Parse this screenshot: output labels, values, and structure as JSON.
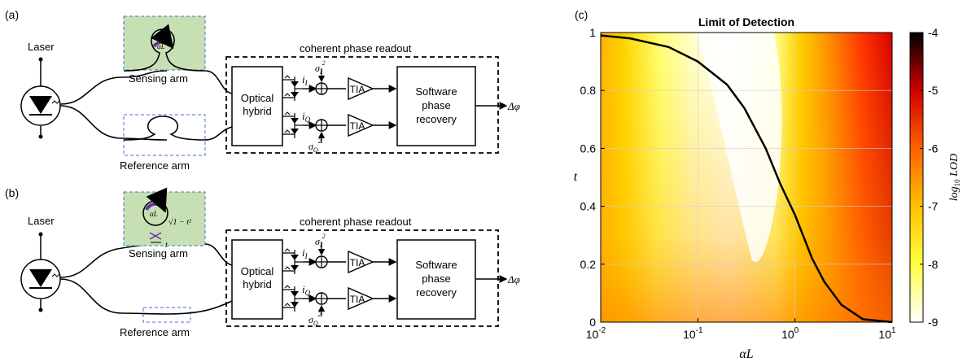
{
  "panel_a": {
    "label": "(a)",
    "laser": "Laser",
    "sensing_arm": "Sensing arm",
    "reference_arm": "Reference arm",
    "ring_label": "αL",
    "readout_title": "coherent phase readout",
    "hybrid_line1": "Optical",
    "hybrid_line2": "hybrid",
    "current_i": "i",
    "current_i_sub": "I",
    "current_q": "i",
    "current_q_sub": "Q",
    "noise_i": "σ",
    "noise_i_sub": "I",
    "noise_i_sup": "2",
    "noise_q": "σ",
    "noise_q_sub": "Q",
    "noise_q_sup": "2",
    "tia": "TIA",
    "software_line1": "Software",
    "software_line2": "phase",
    "software_line3": "recovery",
    "output": "Δφ"
  },
  "panel_b": {
    "label": "(b)",
    "laser": "Laser",
    "sensing_arm": "Sensing arm",
    "reference_arm": "Reference arm",
    "ring_label": "αL",
    "coupler_sqrt": "√1 − t²",
    "coupler_t": "t",
    "readout_title": "coherent phase readout",
    "hybrid_line1": "Optical",
    "hybrid_line2": "hybrid",
    "current_i": "i",
    "current_i_sub": "I",
    "current_q": "i",
    "current_q_sub": "Q",
    "noise_i": "σ",
    "noise_i_sub": "I",
    "noise_i_sup": "2",
    "noise_q": "σ",
    "noise_q_sub": "Q",
    "noise_q_sup": "2",
    "tia": "TIA",
    "software_line1": "Software",
    "software_line2": "phase",
    "software_line3": "recovery",
    "output": "Δφ"
  },
  "panel_c": {
    "label": "(c)",
    "chart_data": {
      "type": "heatmap",
      "title": "Limit of Detection",
      "xlabel": "αL",
      "ylabel": "t",
      "xscale": "log",
      "xlim": [
        0.01,
        10
      ],
      "ylim": [
        0,
        1
      ],
      "x_ticks": [
        "10",
        "10",
        "10",
        "10"
      ],
      "x_tick_exponents": [
        "-2",
        "-1",
        "0",
        "1"
      ],
      "y_ticks": [
        "0",
        "0.2",
        "0.4",
        "0.6",
        "0.8",
        "1"
      ],
      "colorbar_label": "log10 LOD",
      "colorbar_ticks": [
        "-4",
        "-5",
        "-6",
        "-7",
        "-8",
        "-9"
      ],
      "colorbar_range": [
        -9,
        -4
      ],
      "colormap": [
        "#ffffff",
        "#ffff40",
        "#ffc000",
        "#ff6000",
        "#d00000",
        "#000000"
      ],
      "optimum_curve": {
        "x": [
          0.01,
          0.02,
          0.05,
          0.1,
          0.2,
          0.3,
          0.5,
          0.7,
          1,
          1.5,
          2,
          3,
          5,
          10
        ],
        "y": [
          0.99,
          0.98,
          0.95,
          0.9,
          0.82,
          0.74,
          0.6,
          0.48,
          0.37,
          0.22,
          0.14,
          0.06,
          0.01,
          0.0
        ]
      }
    }
  }
}
